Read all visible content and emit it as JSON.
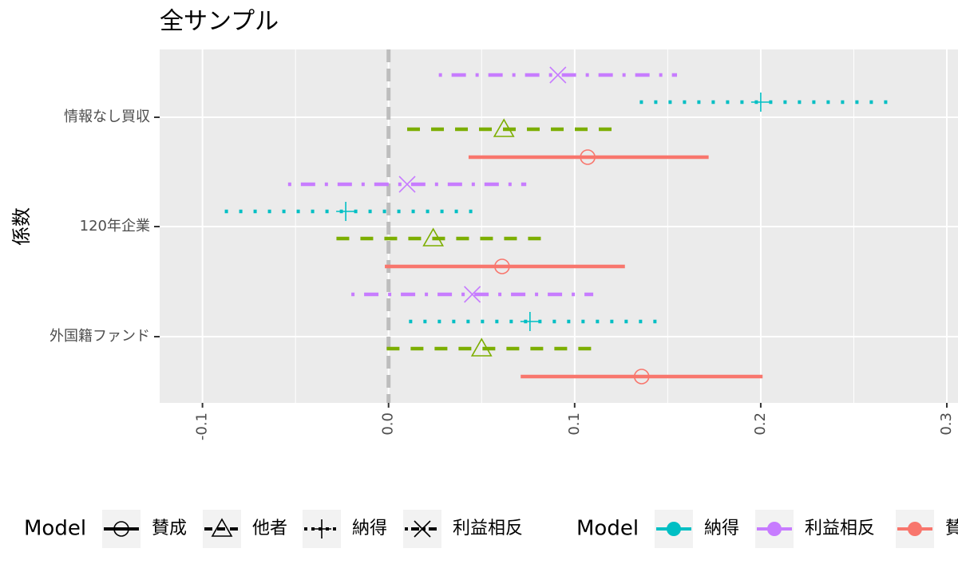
{
  "chart_data": {
    "type": "pointrange",
    "title": "全サンプル",
    "y_label": "係数",
    "legend_title": "Model",
    "categories": [
      "情報なし買収",
      "120年企業",
      "外国籍ファンド"
    ],
    "xlim": [
      -0.123,
      0.306
    ],
    "xticks": [
      -0.1,
      {
        "value": 0,
        "label": "0.0"
      },
      0.1,
      0.2,
      0.3
    ],
    "xintercept": 0,
    "grid": true,
    "series": [
      {
        "name": "賛成",
        "color": "#F8766D",
        "shape": "circle",
        "linetype": "solid",
        "values": [
          0.107,
          0.061,
          0.136
        ],
        "lower": [
          0.043,
          -0.002,
          0.071
        ],
        "upper": [
          0.172,
          0.127,
          0.201
        ]
      },
      {
        "name": "他者",
        "color": "#7CAE00",
        "shape": "triangle",
        "linetype": "dashed",
        "values": [
          0.062,
          0.024,
          0.05
        ],
        "lower": [
          0.01,
          -0.028,
          -0.001
        ],
        "upper": [
          0.121,
          0.082,
          0.109
        ]
      },
      {
        "name": "納得",
        "color": "#00BFC4",
        "shape": "plus",
        "linetype": "dotted",
        "values": [
          0.2,
          -0.023,
          0.076
        ],
        "lower": [
          0.135,
          -0.088,
          0.011
        ],
        "upper": [
          0.268,
          0.045,
          0.144
        ]
      },
      {
        "name": "利益相反",
        "color": "#C77CFF",
        "shape": "cross",
        "linetype": "dotdash",
        "values": [
          0.091,
          0.01,
          0.045
        ],
        "lower": [
          0.027,
          -0.054,
          -0.02
        ],
        "upper": [
          0.155,
          0.074,
          0.11
        ]
      }
    ]
  }
}
